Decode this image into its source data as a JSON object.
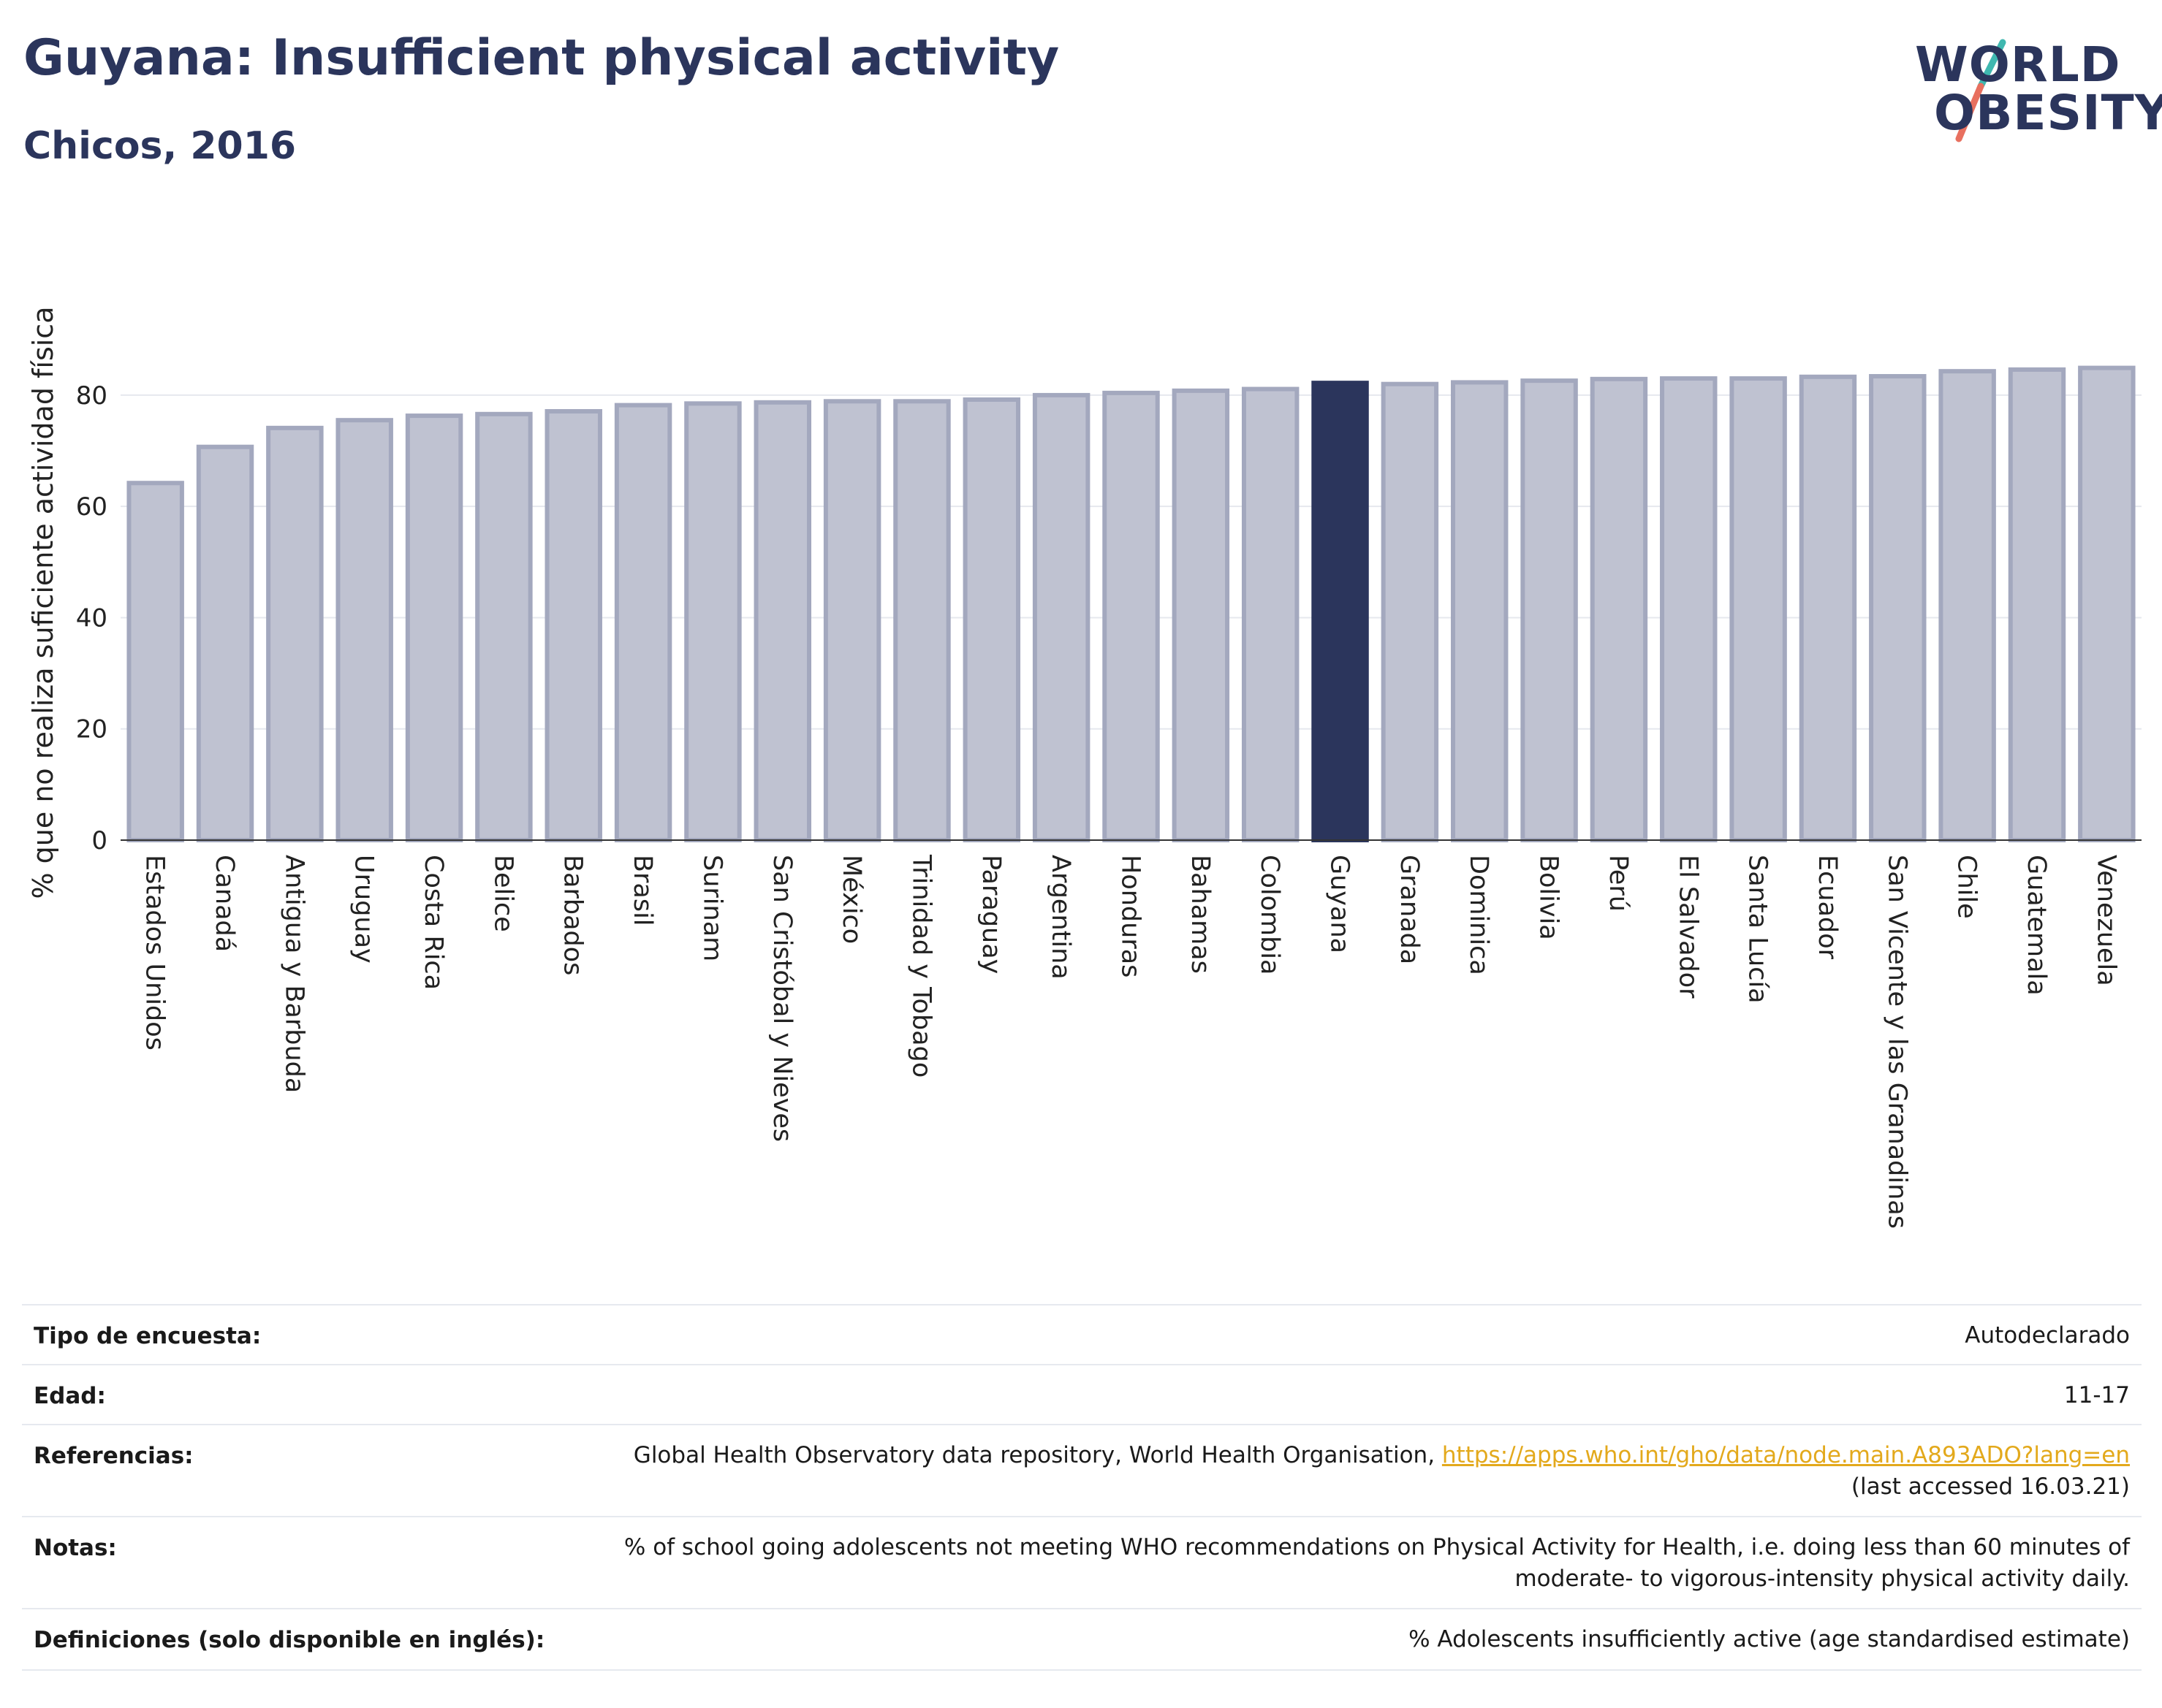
{
  "header": {
    "title": "Guyana: Insufficient physical activity",
    "subtitle": "Chicos, 2016",
    "logo_line1": "WORLD",
    "logo_line2": "OBESITY"
  },
  "chart_data": {
    "type": "bar",
    "ylabel": "% que no realiza suficiente actividad física",
    "ylim": [
      0,
      88
    ],
    "yticks": [
      0,
      20,
      40,
      60,
      80
    ],
    "grid": true,
    "highlight": "Guyana",
    "colors": {
      "bar": "#bfc2d1",
      "bar_border": "#a3a8be",
      "highlight": "#2b355c"
    },
    "categories": [
      "Estados Unidos",
      "Canadá",
      "Antigua y Barbuda",
      "Uruguay",
      "Costa Rica",
      "Belice",
      "Barbados",
      "Brasil",
      "Surinam",
      "San Cristóbal y Nieves",
      "México",
      "Trinidad y Tobago",
      "Paraguay",
      "Argentina",
      "Honduras",
      "Bahamas",
      "Colombia",
      "Guyana",
      "Granada",
      "Dominica",
      "Bolivia",
      "Perú",
      "El Salvador",
      "Santa Lucía",
      "Ecuador",
      "San Vicente y las Granadinas",
      "Chile",
      "Guatemala",
      "Venezuela"
    ],
    "values": [
      64.2,
      70.7,
      74.1,
      75.5,
      76.3,
      76.6,
      77.1,
      78.2,
      78.5,
      78.7,
      78.9,
      78.9,
      79.2,
      80.0,
      80.4,
      80.8,
      81.1,
      82.2,
      82.0,
      82.3,
      82.6,
      82.9,
      83.0,
      83.0,
      83.3,
      83.4,
      84.3,
      84.6,
      84.9
    ]
  },
  "info": {
    "rows": [
      {
        "label": "Tipo de encuesta:",
        "value": "Autodeclarado"
      },
      {
        "label": "Edad:",
        "value": "11-17"
      },
      {
        "label": "Referencias:",
        "value_prefix": "Global Health Observatory data repository, World Health Organisation, ",
        "link": "https://apps.who.int/gho/data/node.main.A893ADO?lang=en",
        "value_suffix": "(last accessed 16.03.21)"
      },
      {
        "label": "Notas:",
        "value_line1": "% of school going adolescents not meeting WHO recommendations on Physical Activity for Health, i.e. doing less than 60 minutes of",
        "value_line2": "moderate- to vigorous-intensity physical activity daily."
      },
      {
        "label": "Definiciones (solo disponible en inglés):",
        "value": "% Adolescents insufficiently active (age standardised estimate)"
      }
    ]
  }
}
